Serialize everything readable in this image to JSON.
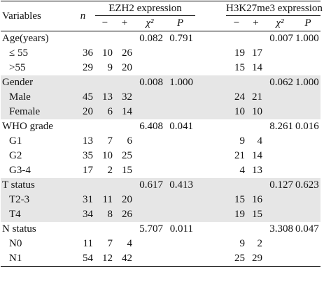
{
  "header": {
    "variables": "Variables",
    "n": "n",
    "ezh2": "EZH2 expression",
    "h3k": "H3K27me3 expression",
    "minus": "−",
    "plus": "+",
    "chi": "χ²",
    "p": "P"
  },
  "rows": [
    {
      "label": "Age(years)",
      "group": true,
      "shade": false,
      "n": "",
      "e_neg": "",
      "e_pos": "",
      "e_chi": "0.082",
      "e_p": "0.791",
      "h_neg": "",
      "h_pos": "",
      "h_chi": "0.007",
      "h_p": "1.000"
    },
    {
      "label": "≤ 55",
      "group": false,
      "shade": false,
      "n": "36",
      "e_neg": "10",
      "e_pos": "26",
      "e_chi": "",
      "e_p": "",
      "h_neg": "19",
      "h_pos": "17",
      "h_chi": "",
      "h_p": ""
    },
    {
      "label": ">55",
      "group": false,
      "shade": false,
      "n": "29",
      "e_neg": "9",
      "e_pos": "20",
      "e_chi": "",
      "e_p": "",
      "h_neg": "15",
      "h_pos": "14",
      "h_chi": "",
      "h_p": ""
    },
    {
      "label": "Gender",
      "group": true,
      "shade": true,
      "n": "",
      "e_neg": "",
      "e_pos": "",
      "e_chi": "0.008",
      "e_p": "1.000",
      "h_neg": "",
      "h_pos": "",
      "h_chi": "0.062",
      "h_p": "1.000"
    },
    {
      "label": "Male",
      "group": false,
      "shade": true,
      "n": "45",
      "e_neg": "13",
      "e_pos": "32",
      "e_chi": "",
      "e_p": "",
      "h_neg": "24",
      "h_pos": "21",
      "h_chi": "",
      "h_p": ""
    },
    {
      "label": "Female",
      "group": false,
      "shade": true,
      "n": "20",
      "e_neg": "6",
      "e_pos": "14",
      "e_chi": "",
      "e_p": "",
      "h_neg": "10",
      "h_pos": "10",
      "h_chi": "",
      "h_p": ""
    },
    {
      "label": "WHO grade",
      "group": true,
      "shade": false,
      "n": "",
      "e_neg": "",
      "e_pos": "",
      "e_chi": "6.408",
      "e_p": "0.041",
      "h_neg": "",
      "h_pos": "",
      "h_chi": "8.261",
      "h_p": "0.016"
    },
    {
      "label": "G1",
      "group": false,
      "shade": false,
      "n": "13",
      "e_neg": "7",
      "e_pos": "6",
      "e_chi": "",
      "e_p": "",
      "h_neg": "9",
      "h_pos": "4",
      "h_chi": "",
      "h_p": ""
    },
    {
      "label": "G2",
      "group": false,
      "shade": false,
      "n": "35",
      "e_neg": "10",
      "e_pos": "25",
      "e_chi": "",
      "e_p": "",
      "h_neg": "21",
      "h_pos": "14",
      "h_chi": "",
      "h_p": ""
    },
    {
      "label": "G3-4",
      "group": false,
      "shade": false,
      "n": "17",
      "e_neg": "2",
      "e_pos": "15",
      "e_chi": "",
      "e_p": "",
      "h_neg": "4",
      "h_pos": "13",
      "h_chi": "",
      "h_p": ""
    },
    {
      "label": "T status",
      "group": true,
      "shade": true,
      "n": "",
      "e_neg": "",
      "e_pos": "",
      "e_chi": "0.617",
      "e_p": "0.413",
      "h_neg": "",
      "h_pos": "",
      "h_chi": "0.127",
      "h_p": "0.623"
    },
    {
      "label": "T2-3",
      "group": false,
      "shade": true,
      "n": "31",
      "e_neg": "11",
      "e_pos": "20",
      "e_chi": "",
      "e_p": "",
      "h_neg": "15",
      "h_pos": "16",
      "h_chi": "",
      "h_p": ""
    },
    {
      "label": "T4",
      "group": false,
      "shade": true,
      "n": "34",
      "e_neg": "8",
      "e_pos": "26",
      "e_chi": "",
      "e_p": "",
      "h_neg": "19",
      "h_pos": "15",
      "h_chi": "",
      "h_p": ""
    },
    {
      "label": "N status",
      "group": true,
      "shade": false,
      "n": "",
      "e_neg": "",
      "e_pos": "",
      "e_chi": "5.707",
      "e_p": "0.011",
      "h_neg": "",
      "h_pos": "",
      "h_chi": "3.308",
      "h_p": "0.047"
    },
    {
      "label": "N0",
      "group": false,
      "shade": false,
      "n": "11",
      "e_neg": "7",
      "e_pos": "4",
      "e_chi": "",
      "e_p": "",
      "h_neg": "9",
      "h_pos": "2",
      "h_chi": "",
      "h_p": ""
    },
    {
      "label": "N1",
      "group": false,
      "shade": false,
      "n": "54",
      "e_neg": "12",
      "e_pos": "42",
      "e_chi": "",
      "e_p": "",
      "h_neg": "25",
      "h_pos": "29",
      "h_chi": "",
      "h_p": ""
    }
  ]
}
